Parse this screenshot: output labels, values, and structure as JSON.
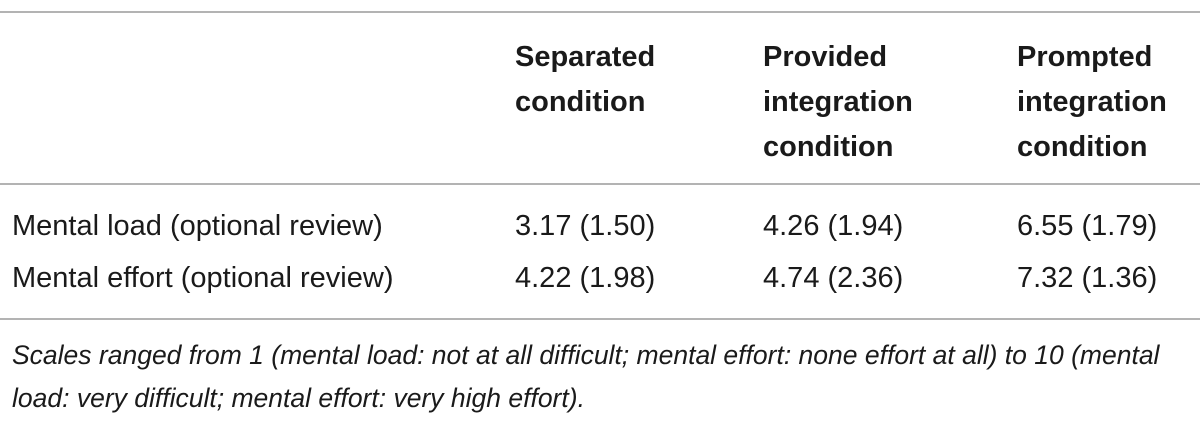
{
  "table": {
    "headers": [
      "Separated\ncondition",
      "Provided\nintegration\ncondition",
      "Prompted\nintegration\ncondition"
    ],
    "rows": [
      {
        "label": "Mental load (optional review)",
        "values": [
          "3.17 (1.50)",
          "4.26 (1.94)",
          "6.55 (1.79)"
        ]
      },
      {
        "label": "Mental effort (optional review)",
        "values": [
          "4.22 (1.98)",
          "4.74 (2.36)",
          "7.32 (1.36)"
        ]
      }
    ],
    "footnote": "Scales ranged from 1 (mental load: not at all difficult; mental effort: none effort at all) to 10 (mental load: very difficult; mental effort: very high effort)."
  }
}
